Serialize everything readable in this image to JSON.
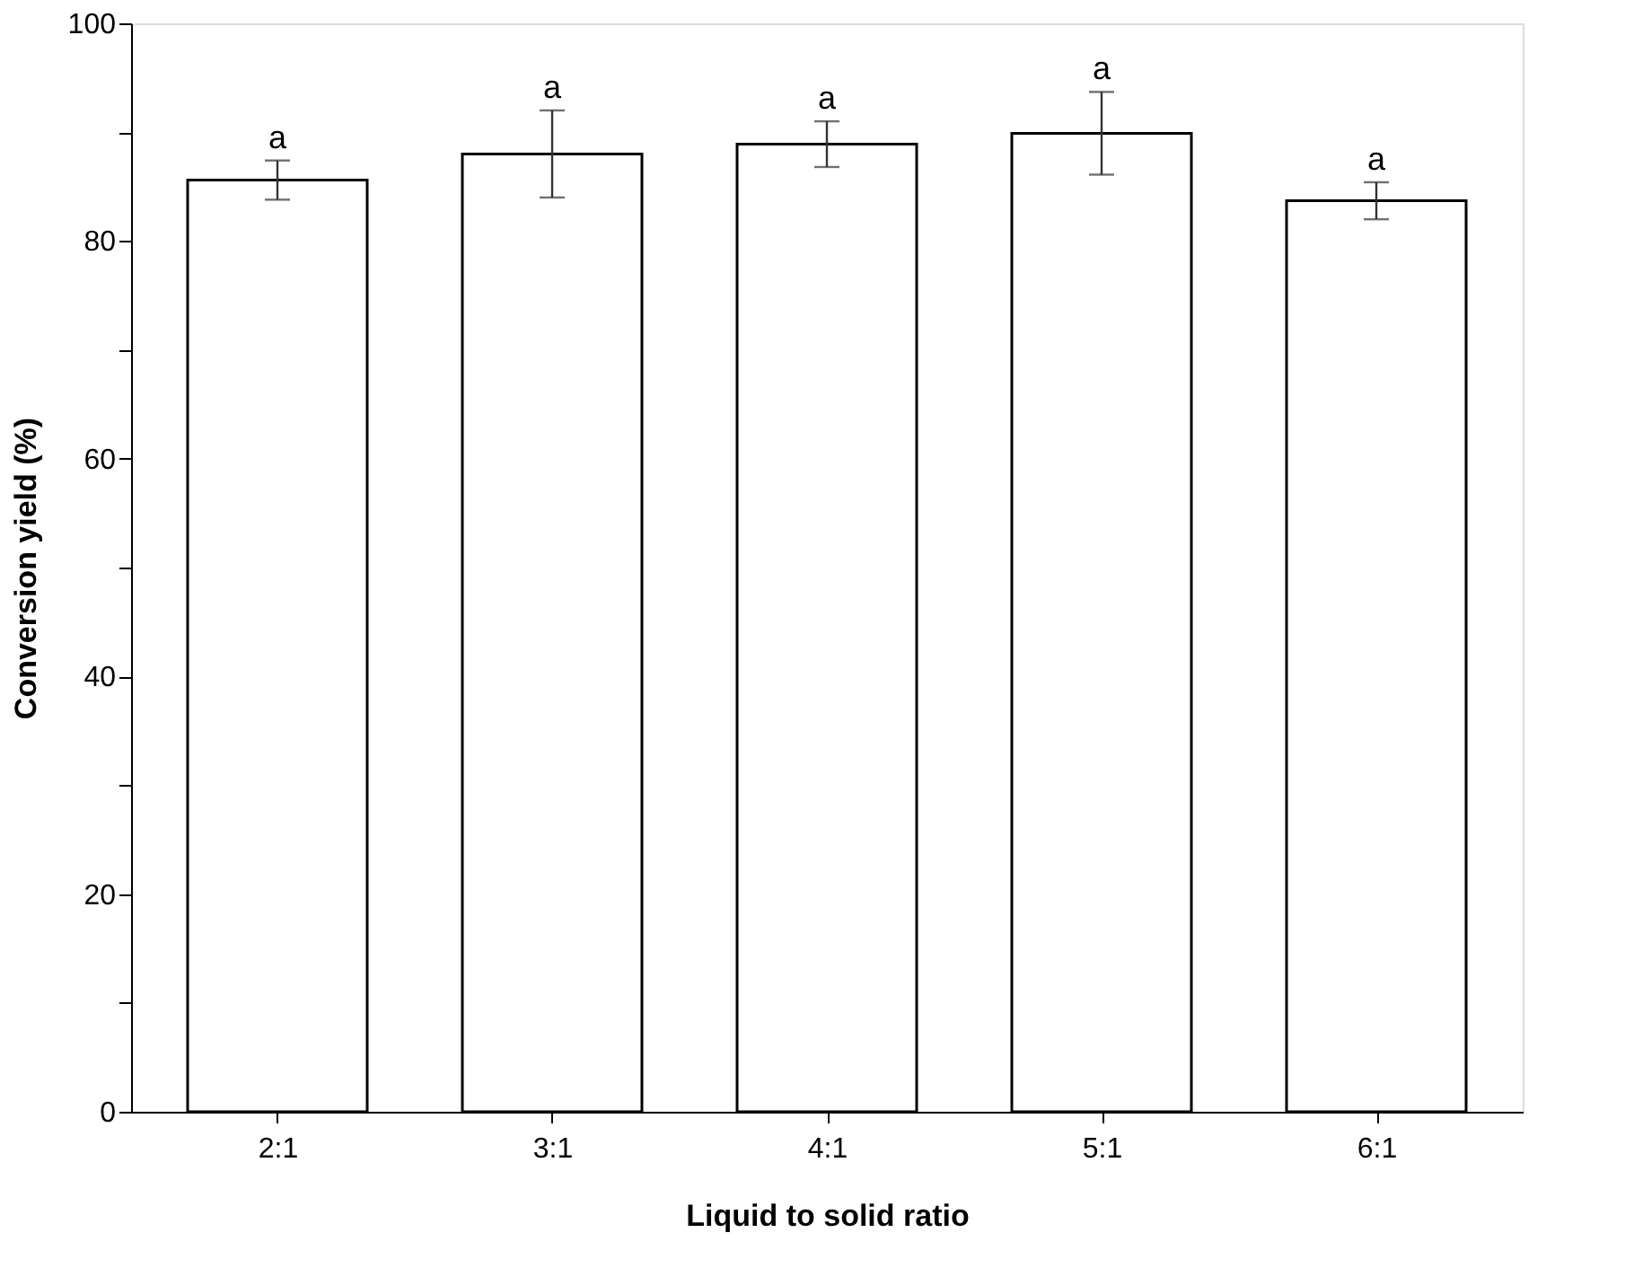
{
  "chart_data": {
    "type": "bar",
    "xlabel": "Liquid to solid ratio",
    "ylabel": "Conversion yield (%)",
    "categories": [
      "2:1",
      "3:1",
      "4:1",
      "5:1",
      "6:1"
    ],
    "values": [
      85.6,
      88.0,
      88.9,
      89.9,
      83.7
    ],
    "errors": [
      1.8,
      4.0,
      2.1,
      3.8,
      1.7
    ],
    "color": "#ffffff",
    "ylim": [
      0,
      100
    ],
    "yticks": [
      0,
      {
        "value": 10,
        "label": null
      },
      20,
      {
        "value": 30,
        "label": null
      },
      40,
      {
        "value": 50,
        "label": null
      },
      60,
      {
        "value": 70,
        "label": null
      },
      80,
      {
        "value": 90,
        "label": null
      },
      100
    ],
    "grid": false,
    "annotations": [
      "a",
      "a",
      "a",
      "a",
      "a"
    ]
  }
}
